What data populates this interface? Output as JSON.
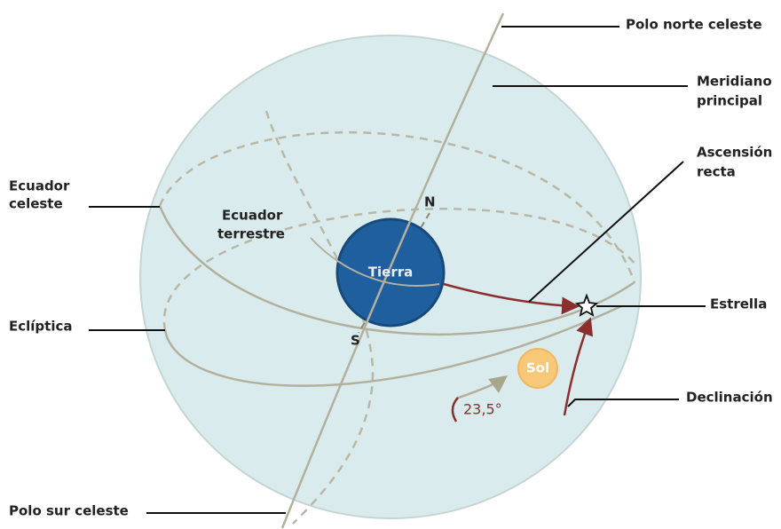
{
  "labels": {
    "polo_norte": "Polo norte celeste",
    "meridiano": [
      "Meridiano",
      "principal"
    ],
    "ascension": [
      "Ascensión",
      "recta"
    ],
    "ecuador_celeste": [
      "Ecuador",
      "celeste"
    ],
    "ecuador_terrestre": [
      "Ecuador",
      "terrestre"
    ],
    "norte": "N",
    "sur": "S",
    "tierra": "Tierra",
    "estrella": "Estrella",
    "ecliptica": "Eclíptica",
    "sol": "Sol",
    "angulo": "23,5°",
    "declinacion": "Declinación",
    "polo_sur": "Polo sur celeste"
  }
}
